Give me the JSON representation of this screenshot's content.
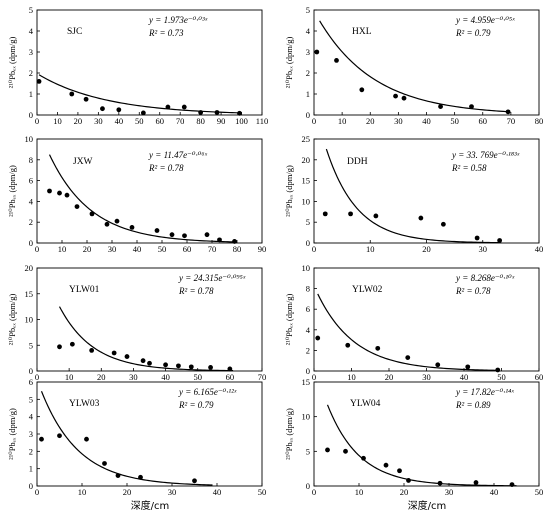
{
  "figure": {
    "xlabel": "深度/cm"
  },
  "chart_data": [
    {
      "type": "scatter",
      "site": "SJC",
      "ylabel": "²¹⁰Pbₑₓ (dpm/g)",
      "equation": "y = 1.973e^{-0.03x}",
      "equation_display": "y = 1.973e⁻⁰·⁰³ˣ",
      "r2_display": "R² = 0.73",
      "xlim": [
        0,
        110
      ],
      "ylim": [
        0,
        5
      ],
      "xticks": [
        0,
        10,
        20,
        30,
        40,
        50,
        60,
        70,
        80,
        90,
        100,
        110
      ],
      "yticks": [
        0,
        1,
        2,
        3,
        4,
        5
      ],
      "fit": {
        "a": 1.973,
        "b": 0.03,
        "x_range": [
          1,
          99
        ]
      },
      "points": [
        [
          1,
          1.6
        ],
        [
          17,
          1.0
        ],
        [
          24,
          0.75
        ],
        [
          32,
          0.3
        ],
        [
          40,
          0.25
        ],
        [
          52,
          0.1
        ],
        [
          64,
          0.38
        ],
        [
          72,
          0.38
        ],
        [
          80,
          0.12
        ],
        [
          88,
          0.12
        ],
        [
          99,
          0.08
        ]
      ]
    },
    {
      "type": "scatter",
      "site": "HXL",
      "ylabel": "²¹⁰Pbₑₓ (dpm/g)",
      "equation": "y = 4.959e^{-0.05x}",
      "equation_display": "y = 4.959e⁻⁰·⁰⁵ˣ",
      "r2_display": "R² = 0.79",
      "xlim": [
        0,
        80
      ],
      "ylim": [
        0,
        5
      ],
      "xticks": [
        0,
        10,
        20,
        30,
        40,
        50,
        60,
        70,
        80
      ],
      "yticks": [
        0,
        1,
        2,
        3,
        4,
        5
      ],
      "fit": {
        "a": 4.959,
        "b": 0.05,
        "x_range": [
          2,
          69
        ]
      },
      "points": [
        [
          1,
          3.0
        ],
        [
          8,
          2.6
        ],
        [
          17,
          1.2
        ],
        [
          29,
          0.9
        ],
        [
          32,
          0.8
        ],
        [
          45,
          0.4
        ],
        [
          56,
          0.4
        ],
        [
          69,
          0.15
        ]
      ]
    },
    {
      "type": "scatter",
      "site": "JXW",
      "ylabel": "²¹⁰Pbₑₓ (dpm/g)",
      "equation": "y = 11.47e^{-0.06x}",
      "equation_display": "y = 11.47e⁻⁰·⁰⁶ˣ",
      "r2_display": "R² = 0.78",
      "xlim": [
        0,
        90
      ],
      "ylim": [
        0,
        10
      ],
      "xticks": [
        0,
        10,
        20,
        30,
        40,
        50,
        60,
        70,
        80,
        90
      ],
      "yticks": [
        0,
        2,
        4,
        6,
        8,
        10
      ],
      "fit": {
        "a": 11.47,
        "b": 0.06,
        "x_range": [
          5,
          80
        ]
      },
      "points": [
        [
          5,
          5.0
        ],
        [
          9,
          4.8
        ],
        [
          12,
          4.6
        ],
        [
          16,
          3.5
        ],
        [
          22,
          2.8
        ],
        [
          28,
          1.8
        ],
        [
          32,
          2.1
        ],
        [
          38,
          1.5
        ],
        [
          48,
          1.2
        ],
        [
          54,
          0.8
        ],
        [
          59,
          0.7
        ],
        [
          68,
          0.8
        ],
        [
          73,
          0.3
        ],
        [
          79,
          0.15
        ]
      ]
    },
    {
      "type": "scatter",
      "site": "DDH",
      "ylabel": "²¹⁰Pbₑₓ (dpm/g)",
      "equation": "y = 33.769e^{-0.183x}",
      "equation_display": "y = 33. 769e⁻⁰·¹⁸³ˣ",
      "r2_display": "R² = 0.58",
      "xlim": [
        0,
        40
      ],
      "ylim": [
        0,
        25
      ],
      "xticks": [
        0,
        10,
        20,
        30,
        40
      ],
      "yticks": [
        0,
        5,
        10,
        15,
        20,
        25
      ],
      "fit": {
        "a": 33.769,
        "b": 0.183,
        "x_range": [
          2.2,
          33
        ]
      },
      "points": [
        [
          2,
          7.0
        ],
        [
          6.5,
          7.0
        ],
        [
          11,
          6.5
        ],
        [
          19,
          6.0
        ],
        [
          23,
          4.5
        ],
        [
          29,
          1.2
        ],
        [
          33,
          0.6
        ]
      ]
    },
    {
      "type": "scatter",
      "site": "YLW01",
      "ylabel": "²¹⁰Pbₑₓ (dpm/g)",
      "equation": "y = 24.315e^{-0.095x}",
      "equation_display": "y = 24.315e⁻⁰·⁰⁹⁵ˣ",
      "r2_display": "R² = 0.78",
      "xlim": [
        0,
        70
      ],
      "ylim": [
        0,
        20
      ],
      "xticks": [
        0,
        10,
        20,
        30,
        40,
        50,
        60,
        70
      ],
      "yticks": [
        0,
        5,
        10,
        15,
        20
      ],
      "fit": {
        "a": 24.315,
        "b": 0.095,
        "x_range": [
          7,
          61
        ]
      },
      "points": [
        [
          7,
          4.7
        ],
        [
          11,
          5.2
        ],
        [
          17,
          4.0
        ],
        [
          24,
          3.5
        ],
        [
          28,
          2.8
        ],
        [
          33,
          2.0
        ],
        [
          35,
          1.5
        ],
        [
          40,
          1.2
        ],
        [
          44,
          1.0
        ],
        [
          48,
          0.8
        ],
        [
          54,
          0.7
        ],
        [
          60,
          0.4
        ]
      ]
    },
    {
      "type": "scatter",
      "site": "YLW02",
      "ylabel": "²¹⁰Pbₑₓ (dpm/g)",
      "equation": "y = 8.268e^{-0.10x}",
      "equation_display": "y = 8.268e⁻⁰·¹⁰ˣ",
      "r2_display": "R² = 0.78",
      "xlim": [
        0,
        60
      ],
      "ylim": [
        0,
        10
      ],
      "xticks": [
        0,
        10,
        20,
        30,
        40,
        50,
        60
      ],
      "yticks": [
        0,
        2,
        4,
        6,
        8,
        10
      ],
      "fit": {
        "a": 8.268,
        "b": 0.1,
        "x_range": [
          1,
          49
        ]
      },
      "points": [
        [
          1,
          3.2
        ],
        [
          9,
          2.5
        ],
        [
          17,
          2.2
        ],
        [
          25,
          1.3
        ],
        [
          33,
          0.6
        ],
        [
          41,
          0.4
        ],
        [
          49,
          0.1
        ]
      ]
    },
    {
      "type": "scatter",
      "site": "YLW03",
      "ylabel": "²¹⁰Pbₑₓ (dpm/g)",
      "equation": "y = 6.165e^{-0.12x}",
      "equation_display": "y = 6.165e⁻⁰·¹²ˣ",
      "r2_display": "R² = 0.79",
      "xlim": [
        0,
        50
      ],
      "ylim": [
        0,
        6
      ],
      "xticks": [
        0,
        10,
        20,
        30,
        40,
        50
      ],
      "yticks": [
        0,
        1,
        2,
        3,
        4,
        5,
        6
      ],
      "fit": {
        "a": 6.165,
        "b": 0.12,
        "x_range": [
          1,
          39
        ]
      },
      "points": [
        [
          1,
          2.7
        ],
        [
          5,
          2.9
        ],
        [
          11,
          2.7
        ],
        [
          15,
          1.3
        ],
        [
          18,
          0.6
        ],
        [
          23,
          0.5
        ],
        [
          35,
          0.3
        ]
      ]
    },
    {
      "type": "scatter",
      "site": "YLW04",
      "ylabel": "²¹⁰Pbₑₓ (dpm/g)",
      "equation": "y = 17.82e^{-0.14x}",
      "equation_display": "y = 17.82e⁻⁰·¹⁴ˣ",
      "r2_display": "R² = 0.89",
      "xlim": [
        0,
        50
      ],
      "ylim": [
        0,
        15
      ],
      "xticks": [
        0,
        10,
        20,
        30,
        40,
        50
      ],
      "yticks": [
        0,
        5,
        10,
        15
      ],
      "fit": {
        "a": 17.82,
        "b": 0.14,
        "x_range": [
          3,
          45
        ]
      },
      "points": [
        [
          3,
          5.2
        ],
        [
          7,
          5.0
        ],
        [
          11,
          4.0
        ],
        [
          16,
          3.0
        ],
        [
          19,
          2.2
        ],
        [
          21,
          0.8
        ],
        [
          28,
          0.4
        ],
        [
          36,
          0.5
        ],
        [
          44,
          0.2
        ]
      ]
    }
  ]
}
